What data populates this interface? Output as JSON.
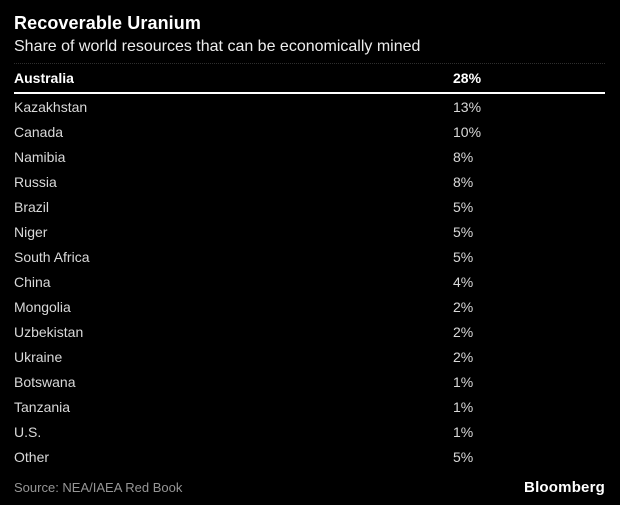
{
  "chart_data": {
    "type": "table",
    "title": "Recoverable Uranium",
    "subtitle": "Share of world resources that can be economically mined",
    "categories": [
      "Australia",
      "Kazakhstan",
      "Canada",
      "Namibia",
      "Russia",
      "Brazil",
      "Niger",
      "South Africa",
      "China",
      "Mongolia",
      "Uzbekistan",
      "Ukraine",
      "Botswana",
      "Tanzania",
      "U.S.",
      "Other"
    ],
    "values": [
      28,
      13,
      10,
      8,
      8,
      5,
      5,
      5,
      4,
      2,
      2,
      2,
      1,
      1,
      1,
      5
    ],
    "unit": "%",
    "source": "Source: NEA/IAEA Red Book",
    "brand": "Bloomberg",
    "legend_position": "none",
    "grid": false
  },
  "header": {
    "title": "Recoverable Uranium",
    "subtitle": "Share of world resources that can be economically mined"
  },
  "table": {
    "rows": [
      {
        "label": "Australia",
        "value": "28%",
        "highlight": true
      },
      {
        "label": "Kazakhstan",
        "value": "13%",
        "highlight": false
      },
      {
        "label": "Canada",
        "value": "10%",
        "highlight": false
      },
      {
        "label": "Namibia",
        "value": "8%",
        "highlight": false
      },
      {
        "label": "Russia",
        "value": "8%",
        "highlight": false
      },
      {
        "label": "Brazil",
        "value": "5%",
        "highlight": false
      },
      {
        "label": "Niger",
        "value": "5%",
        "highlight": false
      },
      {
        "label": "South Africa",
        "value": "5%",
        "highlight": false
      },
      {
        "label": "China",
        "value": "4%",
        "highlight": false
      },
      {
        "label": "Mongolia",
        "value": "2%",
        "highlight": false
      },
      {
        "label": "Uzbekistan",
        "value": "2%",
        "highlight": false
      },
      {
        "label": "Ukraine",
        "value": "2%",
        "highlight": false
      },
      {
        "label": "Botswana",
        "value": "1%",
        "highlight": false
      },
      {
        "label": "Tanzania",
        "value": "1%",
        "highlight": false
      },
      {
        "label": "U.S.",
        "value": "1%",
        "highlight": false
      },
      {
        "label": "Other",
        "value": "5%",
        "highlight": false
      }
    ]
  },
  "footer": {
    "source": "Source: NEA/IAEA Red Book",
    "brand": "Bloomberg"
  },
  "colors": {
    "background": "#000000",
    "title": "#ffffff",
    "subtitle": "#ededed",
    "row_text": "#d9d9d9",
    "highlight_text": "#ffffff",
    "divider": "#ffffff",
    "source_text": "#969696"
  }
}
